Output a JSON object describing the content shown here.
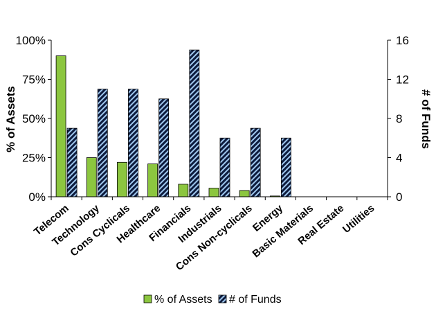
{
  "chart_data": {
    "type": "bar",
    "categories": [
      "Telecom",
      "Technology",
      "Cons Cyclicals",
      "Healthcare",
      "Financials",
      "Industrials",
      "Cons Non-cyclicals",
      "Energy",
      "Basic Materials",
      "Real Estate",
      "Utilities"
    ],
    "series": [
      {
        "name": "% of Assets",
        "axis": "left",
        "color": "#8cc63f",
        "values": [
          90,
          25,
          22,
          21,
          8,
          5.5,
          4,
          0.5,
          0,
          0,
          0
        ]
      },
      {
        "name": "# of Funds",
        "axis": "right",
        "color": "#0d1b3d",
        "pattern": "diagonal-stripes-light-blue",
        "values": [
          7,
          11,
          11,
          10,
          15,
          6,
          7,
          6,
          0,
          0,
          0
        ]
      }
    ],
    "ylabel": "% of Assets",
    "y2label": "# of Funds",
    "ylim": [
      0,
      100
    ],
    "y2lim": [
      0,
      16
    ],
    "yticks": [
      "0%",
      "25%",
      "50%",
      "75%",
      "100%"
    ],
    "y2ticks": [
      "0",
      "4",
      "8",
      "12",
      "16"
    ],
    "grid": false,
    "legend": "bottom"
  }
}
